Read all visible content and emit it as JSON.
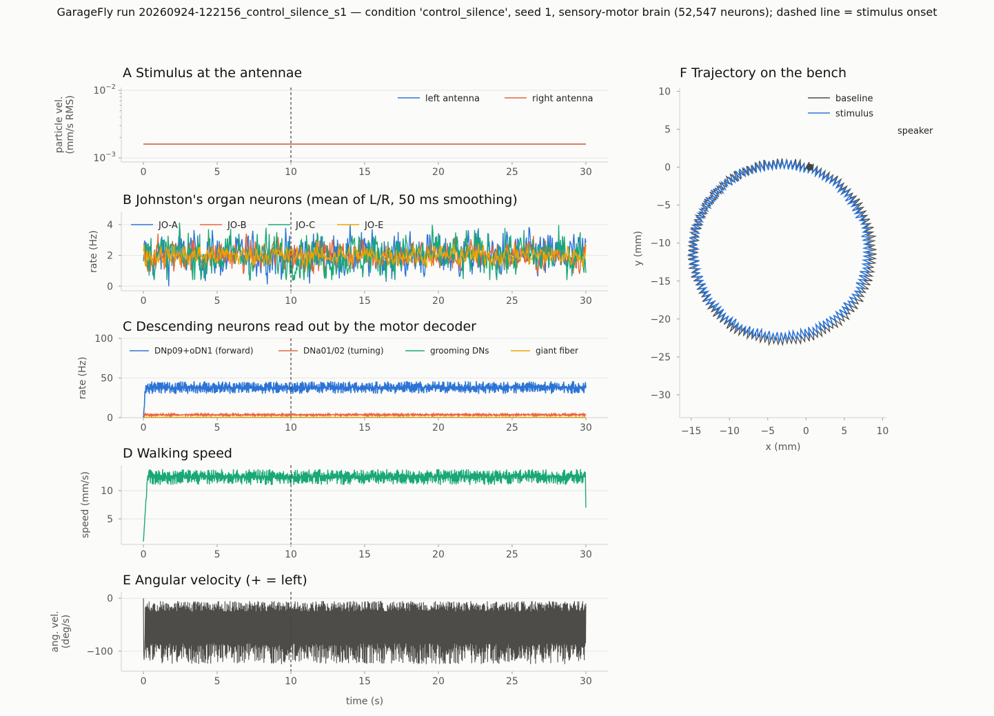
{
  "figure": {
    "suptitle": "GarageFly run 20260924-122156_control_silence_s1 — condition 'control_silence', seed 1, sensory-motor brain (52,547 neurons); dashed line = stimulus onset",
    "colors": {
      "background": "#fbfbf9",
      "grid": "#e6e6e4",
      "axis": "#cfcfcd",
      "blue": "#2c74d6",
      "orange_red": "#e8643a",
      "green": "#1aa878",
      "amber": "#f0a200",
      "dark": "#4d4c49",
      "onset_line": "#444444"
    }
  },
  "chart_data": [
    {
      "id": "A",
      "type": "line",
      "title": "A  Stimulus at the antennae",
      "xlabel": "",
      "ylabel": "particle vel.\n(mm/s RMS)",
      "yscale": "log",
      "ylim": [
        0.00087,
        0.011
      ],
      "yticks": [
        {
          "value": 0.01,
          "base": "10",
          "exp": "−2"
        },
        {
          "value": 0.001,
          "base": "10",
          "exp": "−3"
        }
      ],
      "xlim": [
        -1.5,
        31.5
      ],
      "xticks": [
        0,
        5,
        10,
        15,
        20,
        25,
        30
      ],
      "stimulus_onset": 10,
      "grid": true,
      "legend": {
        "placement": "top-right",
        "ncol": 2
      },
      "series": [
        {
          "name": "left antenna",
          "color": "#2c74d6",
          "x": [
            0,
            30
          ],
          "y": [
            0.0016,
            0.0016
          ]
        },
        {
          "name": "right antenna",
          "color": "#e8643a",
          "x": [
            0,
            30
          ],
          "y": [
            0.0016,
            0.0016
          ]
        }
      ]
    },
    {
      "id": "B",
      "type": "line",
      "title": "B  Johnston's organ neurons (mean of L/R, 50 ms smoothing)",
      "xlabel": "",
      "ylabel": "rate (Hz)",
      "ylim": [
        -0.3,
        4.8
      ],
      "yticks": [
        0,
        2,
        4
      ],
      "xlim": [
        -1.5,
        31.5
      ],
      "xticks": [
        0,
        5,
        10,
        15,
        20,
        25,
        30
      ],
      "stimulus_onset": 10,
      "grid": true,
      "legend": {
        "placement": "top-left",
        "ncol": 4
      },
      "series": [
        {
          "name": "JO-A",
          "color": "#2c74d6",
          "x_range": [
            0,
            30
          ],
          "mean": 2.0,
          "spread": 0.75,
          "min": 0.0,
          "max": 4.3
        },
        {
          "name": "JO-B",
          "color": "#e8643a",
          "x_range": [
            0,
            30
          ],
          "mean": 2.0,
          "spread": 0.55,
          "min": 0.8,
          "max": 3.6
        },
        {
          "name": "JO-C",
          "color": "#1aa878",
          "x_range": [
            0,
            30
          ],
          "mean": 2.0,
          "spread": 0.8,
          "min": 0.4,
          "max": 4.6
        },
        {
          "name": "JO-E",
          "color": "#f0a200",
          "x_range": [
            0,
            30
          ],
          "mean": 2.0,
          "spread": 0.35,
          "min": 1.2,
          "max": 2.9
        }
      ]
    },
    {
      "id": "C",
      "type": "line",
      "title": "C  Descending neurons read out by the motor decoder",
      "xlabel": "",
      "ylabel": "rate (Hz)",
      "ylim": [
        0,
        100
      ],
      "yticks": [
        0,
        50,
        100
      ],
      "xlim": [
        -1.5,
        31.5
      ],
      "xticks": [
        0,
        5,
        10,
        15,
        20,
        25,
        30
      ],
      "stimulus_onset": 10,
      "grid": true,
      "legend": {
        "placement": "top",
        "ncol": 4
      },
      "series": [
        {
          "name": "DNp09+oDN1 (forward)",
          "color": "#2c74d6",
          "onset_value": 0,
          "plateau": [
            30,
            46
          ],
          "x_range": [
            0,
            30
          ]
        },
        {
          "name": "DNa01/02 (turning)",
          "color": "#e8643a",
          "plateau": [
            2,
            5
          ],
          "x_range": [
            0,
            30
          ]
        },
        {
          "name": "grooming DNs",
          "color": "#1aa878",
          "plateau": [
            0,
            0.5
          ],
          "x_range": [
            0,
            30
          ]
        },
        {
          "name": "giant fiber",
          "color": "#f0a200",
          "plateau": [
            0,
            0.3
          ],
          "x_range": [
            0,
            30
          ]
        }
      ]
    },
    {
      "id": "D",
      "type": "line",
      "title": "D  Walking speed",
      "xlabel": "",
      "ylabel": "speed (mm/s)",
      "ylim": [
        0.5,
        14.5
      ],
      "yticks": [
        5,
        10
      ],
      "xlim": [
        -1.5,
        31.5
      ],
      "xticks": [
        0,
        5,
        10,
        15,
        20,
        25,
        30
      ],
      "stimulus_onset": 10,
      "grid": true,
      "series": [
        {
          "name": "",
          "color": "#1aa878",
          "start": 1.0,
          "plateau": [
            11.0,
            13.8
          ],
          "end": 7.0,
          "x_range": [
            0,
            30
          ]
        }
      ]
    },
    {
      "id": "E",
      "type": "line",
      "title": "E  Angular velocity (+ = left)",
      "xlabel": "time (s)",
      "ylabel": "ang. vel.\n(deg/s)",
      "ylim": [
        -138,
        12
      ],
      "yticks": [
        0,
        -100
      ],
      "xlim": [
        -1.5,
        31.5
      ],
      "xticks": [
        0,
        5,
        10,
        15,
        20,
        25,
        30
      ],
      "stimulus_onset": 10,
      "grid": true,
      "series": [
        {
          "name": "",
          "color": "#4d4c49",
          "start": 0,
          "band_top": [
            -5,
            -25
          ],
          "band_bottom": [
            -85,
            -125
          ],
          "x_range": [
            0,
            30
          ]
        }
      ]
    },
    {
      "id": "F",
      "type": "line",
      "title": "F  Trajectory on the bench",
      "xlabel": "x (mm)",
      "ylabel": "y (mm)",
      "xlim": [
        -16.5,
        10.5
      ],
      "ylim": [
        -33,
        10.5
      ],
      "xticks": [
        -15,
        -10,
        -5,
        0,
        5,
        10
      ],
      "yticks": [
        10,
        5,
        0,
        -5,
        -10,
        -15,
        -20,
        -25,
        -30
      ],
      "aspect": "equal",
      "legend": {
        "placement": "top-right",
        "ncol": 1
      },
      "annotation": "speaker",
      "start_marker": {
        "x": 0.5,
        "y": 0.0
      },
      "series": [
        {
          "name": "baseline",
          "color": "#4d4c49",
          "center": [
            -3.1,
            -11.2
          ],
          "radius": 11.7,
          "wobble": 0.6
        },
        {
          "name": "stimulus",
          "color": "#2c74d6",
          "center": [
            -3.3,
            -11.0
          ],
          "radius": 11.4,
          "wobble": 0.6
        }
      ]
    }
  ]
}
